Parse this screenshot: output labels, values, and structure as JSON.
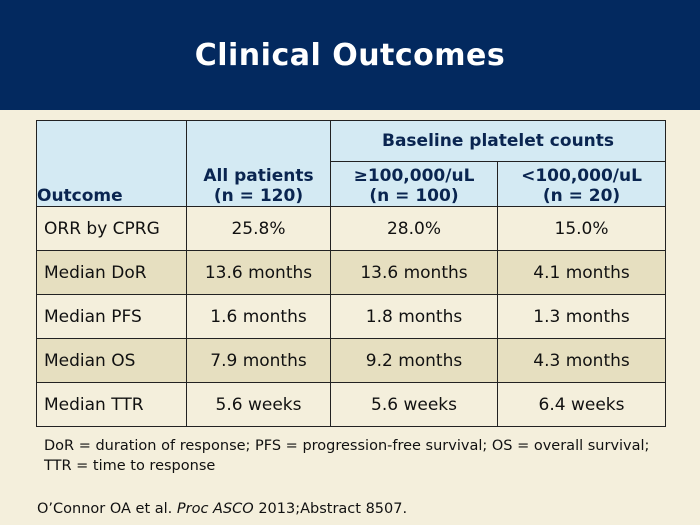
{
  "title": "Clinical Outcomes",
  "table": {
    "col_outcome": "Outcome",
    "col_all_line1": "All patients",
    "col_all_line2": "(n = 120)",
    "group_header": "Baseline platelet counts",
    "col_high_line1": "≥100,000/uL",
    "col_high_line2": "(n = 100)",
    "col_low_line1": "<100,000/uL",
    "col_low_line2": "(n = 20)",
    "rows": [
      {
        "label": "ORR by CPRG",
        "all": "25.8%",
        "high": "28.0%",
        "low": "15.0%"
      },
      {
        "label": "Median DoR",
        "all": "13.6 months",
        "high": "13.6 months",
        "low": "4.1 months"
      },
      {
        "label": "Median PFS",
        "all": "1.6 months",
        "high": "1.8 months",
        "low": "1.3 months"
      },
      {
        "label": "Median OS",
        "all": "7.9 months",
        "high": "9.2 months",
        "low": "4.3 months"
      },
      {
        "label": "Median TTR",
        "all": "5.6 weeks",
        "high": "5.6 weeks",
        "low": "6.4 weeks"
      }
    ]
  },
  "footnote": "DoR = duration of response; PFS = progression-free survival; OS = overall survival; TTR = time to response",
  "citation": {
    "authors": "O’Connor OA et al.",
    "journal": "Proc ASCO",
    "rest": "2013;Abstract 8507."
  },
  "colors": {
    "header_bg": "#03295f",
    "table_header_bg": "#d4eaf3",
    "row_alt_bg": "#e6dfc0",
    "page_bg": "#f4efdc"
  }
}
